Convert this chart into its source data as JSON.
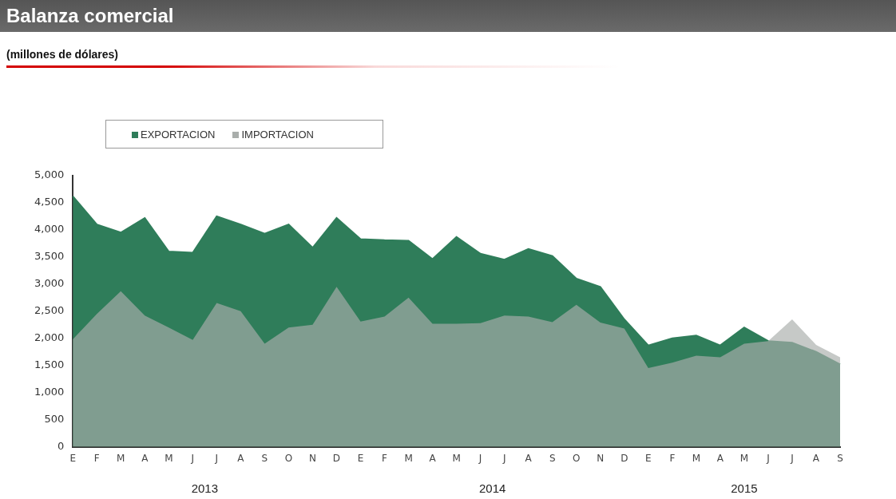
{
  "chart_data": {
    "type": "area",
    "title": "Balanza comercial",
    "subtitle": "(millones de dólares)",
    "categories": [
      "E",
      "F",
      "M",
      "A",
      "M",
      "J",
      "J",
      "A",
      "S",
      "O",
      "N",
      "D",
      "E",
      "F",
      "M",
      "A",
      "M",
      "J",
      "J",
      "A",
      "S",
      "O",
      "N",
      "D",
      "E",
      "F",
      "M",
      "A",
      "M",
      "J",
      "J",
      "A",
      "S"
    ],
    "series": [
      {
        "name": "EXPORTACION",
        "color": "#2f7d5a",
        "values": [
          4620,
          4100,
          3950,
          4220,
          3600,
          3580,
          4250,
          4100,
          3930,
          4100,
          3670,
          4220,
          3830,
          3810,
          3800,
          3460,
          3870,
          3560,
          3450,
          3650,
          3520,
          3100,
          2950,
          2350,
          1870,
          2000,
          2050,
          1870,
          2200,
          1950,
          1920,
          1750,
          1520
        ]
      },
      {
        "name": "IMPORTACION",
        "color": "#a9aeab",
        "values": [
          1980,
          2450,
          2870,
          2420,
          2200,
          1970,
          2650,
          2500,
          1900,
          2200,
          2250,
          2950,
          2310,
          2400,
          2750,
          2270,
          2270,
          2280,
          2420,
          2400,
          2300,
          2620,
          2290,
          2180,
          1450,
          1550,
          1680,
          1650,
          1900,
          1950,
          2350,
          1880,
          1650
        ]
      }
    ],
    "ylim": [
      0,
      5000
    ],
    "yticks": [
      {
        "value": 0,
        "label": "0"
      },
      {
        "value": 500,
        "label": "500"
      },
      {
        "value": 1000,
        "label": "1,000"
      },
      {
        "value": 1500,
        "label": "1,500"
      },
      {
        "value": 2000,
        "label": "2,000"
      },
      {
        "value": 2500,
        "label": "2,500"
      },
      {
        "value": 3000,
        "label": "3,000"
      },
      {
        "value": 3500,
        "label": "3,500"
      },
      {
        "value": 4000,
        "label": "4,000"
      },
      {
        "value": 4500,
        "label": "4,500"
      },
      {
        "value": 5000,
        "label": "5,000"
      }
    ],
    "grid": false,
    "legend": "top left",
    "annotations": [
      "2013",
      "2014",
      "2015"
    ]
  }
}
